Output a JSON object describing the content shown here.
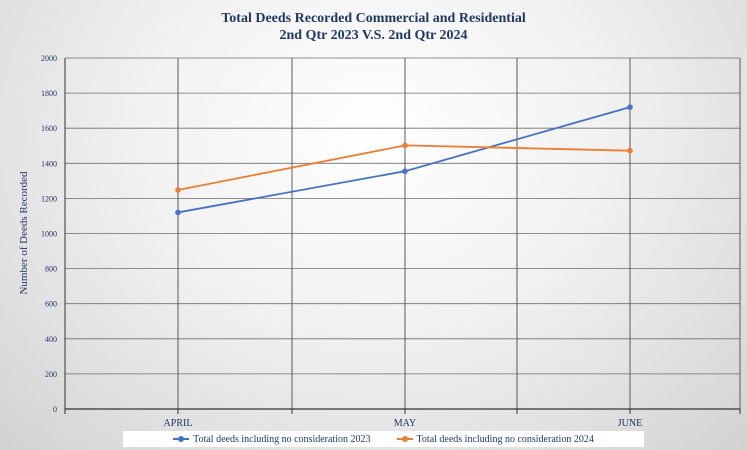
{
  "chart_data": {
    "type": "line",
    "title_line1": "Total Deeds Recorded Commercial and Residential",
    "title_line2": "2nd Qtr 2023 V.S. 2nd Qtr 2024",
    "xlabel": "",
    "ylabel": "Number of Deeds Recorded",
    "categories": [
      "APRIL",
      "MAY",
      "JUNE"
    ],
    "ylim": [
      0,
      2000
    ],
    "yticks": [
      0,
      200,
      400,
      600,
      800,
      1000,
      1200,
      1400,
      1600,
      1800,
      2000
    ],
    "grid": true,
    "legend_position": "bottom",
    "series": [
      {
        "name": "Total deeds including no consideration 2023",
        "color": "#4472c4",
        "values": [
          1120,
          1355,
          1720
        ]
      },
      {
        "name": "Total deeds including no consideration 2024",
        "color": "#ed7d31",
        "values": [
          1248,
          1502,
          1472
        ]
      }
    ]
  }
}
